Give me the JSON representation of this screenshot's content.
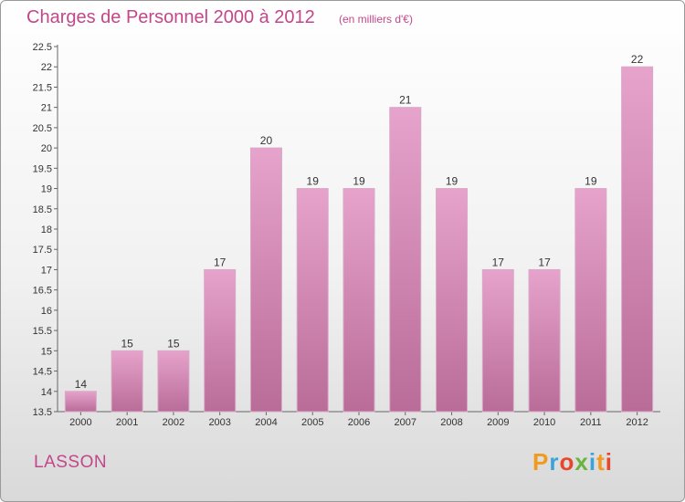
{
  "header": {
    "title": "Charges de Personnel 2000 à 2012",
    "subtitle": "(en milliers d'€)"
  },
  "footer": {
    "commune": "LASSON",
    "logo_text": "Proxiti"
  },
  "colors": {
    "accent": "#c2478a",
    "bar_top": "#e6a3cb",
    "bar_bottom": "#b96c98"
  },
  "chart_data": {
    "type": "bar",
    "title": "Charges de Personnel 2000 à 2012",
    "subtitle": "(en milliers d'€)",
    "categories": [
      "2000",
      "2001",
      "2002",
      "2003",
      "2004",
      "2005",
      "2006",
      "2007",
      "2008",
      "2009",
      "2010",
      "2011",
      "2012"
    ],
    "values": [
      14,
      15,
      15,
      17,
      20,
      19,
      19,
      21,
      19,
      17,
      17,
      19,
      22
    ],
    "ylim": [
      13.5,
      22.5
    ],
    "yticks": [
      "13.5",
      "14",
      "14.5",
      "15",
      "15.5",
      "16",
      "16.5",
      "17",
      "17.5",
      "18",
      "18.5",
      "19",
      "19.5",
      "20",
      "20.5",
      "21",
      "21.5",
      "22",
      "22.5"
    ],
    "grid": false,
    "legend": "none"
  }
}
